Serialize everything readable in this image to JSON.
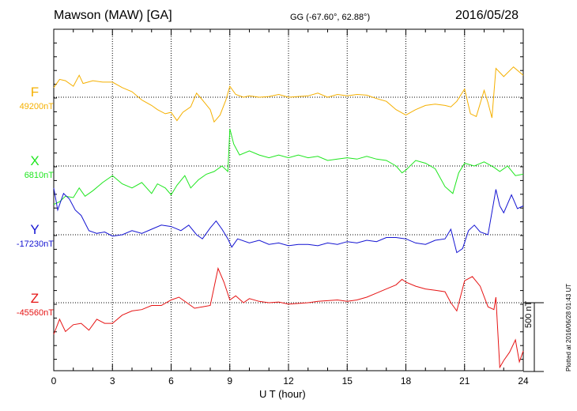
{
  "header": {
    "station": "Mawson (MAW)  [GA]",
    "coords": "GG (-67.60°,  62.88°)",
    "date": "2016/05/28"
  },
  "footer": {
    "plotted_note": "Plotted at 2016/06/28 01:43 UT"
  },
  "colors": {
    "F": "#f5b000",
    "X": "#1ee61e",
    "Y": "#1414d2",
    "Z": "#e61414"
  },
  "chart_data": {
    "type": "line",
    "xlabel": "U T (hour)",
    "xlim": [
      0,
      24
    ],
    "x_ticks": [
      "0",
      "3",
      "6",
      "9",
      "12",
      "15",
      "18",
      "21",
      "24"
    ],
    "scale_bar_label": "500 nT",
    "grid": true,
    "series": [
      {
        "name": "F",
        "baseline_label": "49200nT",
        "points": [
          [
            0,
            70
          ],
          [
            0.3,
            130
          ],
          [
            0.6,
            120
          ],
          [
            1,
            80
          ],
          [
            1.3,
            160
          ],
          [
            1.5,
            100
          ],
          [
            2,
            120
          ],
          [
            2.5,
            110
          ],
          [
            3,
            110
          ],
          [
            3.5,
            70
          ],
          [
            4,
            40
          ],
          [
            4.5,
            -20
          ],
          [
            5,
            -60
          ],
          [
            5.3,
            -90
          ],
          [
            5.7,
            -120
          ],
          [
            6,
            -110
          ],
          [
            6.3,
            -170
          ],
          [
            6.6,
            -110
          ],
          [
            7,
            -70
          ],
          [
            7.3,
            30
          ],
          [
            7.6,
            -20
          ],
          [
            8,
            -90
          ],
          [
            8.2,
            -180
          ],
          [
            8.5,
            -130
          ],
          [
            8.8,
            -20
          ],
          [
            9,
            80
          ],
          [
            9.3,
            20
          ],
          [
            9.7,
            0
          ],
          [
            10,
            10
          ],
          [
            10.5,
            0
          ],
          [
            11,
            5
          ],
          [
            11.5,
            20
          ],
          [
            12,
            0
          ],
          [
            12.5,
            5
          ],
          [
            13,
            10
          ],
          [
            13.5,
            30
          ],
          [
            14,
            0
          ],
          [
            14.5,
            20
          ],
          [
            15,
            10
          ],
          [
            15.5,
            20
          ],
          [
            16,
            15
          ],
          [
            16.5,
            -10
          ],
          [
            17,
            -30
          ],
          [
            17.5,
            -90
          ],
          [
            18,
            -130
          ],
          [
            18.5,
            -90
          ],
          [
            19,
            -60
          ],
          [
            19.5,
            -50
          ],
          [
            20,
            -60
          ],
          [
            20.3,
            -70
          ],
          [
            20.6,
            -30
          ],
          [
            21,
            60
          ],
          [
            21.3,
            -120
          ],
          [
            21.6,
            -140
          ],
          [
            22,
            50
          ],
          [
            22.2,
            -40
          ],
          [
            22.4,
            -150
          ],
          [
            22.6,
            210
          ],
          [
            23,
            150
          ],
          [
            23.5,
            220
          ],
          [
            24,
            160
          ]
        ]
      },
      {
        "name": "X",
        "baseline_label": "6810nT",
        "points": [
          [
            0,
            -280
          ],
          [
            0.3,
            -260
          ],
          [
            0.6,
            -220
          ],
          [
            1,
            -230
          ],
          [
            1.3,
            -160
          ],
          [
            1.6,
            -220
          ],
          [
            2,
            -180
          ],
          [
            2.5,
            -120
          ],
          [
            3,
            -70
          ],
          [
            3.5,
            -130
          ],
          [
            4,
            -160
          ],
          [
            4.5,
            -120
          ],
          [
            5,
            -200
          ],
          [
            5.3,
            -130
          ],
          [
            5.7,
            -160
          ],
          [
            6,
            -210
          ],
          [
            6.3,
            -140
          ],
          [
            6.7,
            -70
          ],
          [
            7,
            -160
          ],
          [
            7.4,
            -100
          ],
          [
            7.8,
            -60
          ],
          [
            8.2,
            -40
          ],
          [
            8.6,
            0
          ],
          [
            8.9,
            -40
          ],
          [
            9,
            270
          ],
          [
            9.2,
            160
          ],
          [
            9.5,
            80
          ],
          [
            10,
            110
          ],
          [
            10.5,
            80
          ],
          [
            11,
            60
          ],
          [
            11.5,
            80
          ],
          [
            12,
            60
          ],
          [
            12.5,
            80
          ],
          [
            13,
            60
          ],
          [
            13.5,
            70
          ],
          [
            14,
            40
          ],
          [
            14.5,
            50
          ],
          [
            15,
            60
          ],
          [
            15.5,
            50
          ],
          [
            16,
            70
          ],
          [
            16.5,
            50
          ],
          [
            17,
            40
          ],
          [
            17.5,
            0
          ],
          [
            17.8,
            -50
          ],
          [
            18,
            -30
          ],
          [
            18.5,
            40
          ],
          [
            19,
            20
          ],
          [
            19.5,
            -20
          ],
          [
            20,
            -150
          ],
          [
            20.4,
            -200
          ],
          [
            20.7,
            -50
          ],
          [
            21,
            20
          ],
          [
            21.5,
            0
          ],
          [
            22,
            30
          ],
          [
            22.5,
            -10
          ],
          [
            22.8,
            -40
          ],
          [
            23.2,
            0
          ],
          [
            23.6,
            -70
          ],
          [
            24,
            -60
          ]
        ]
      },
      {
        "name": "Y",
        "baseline_label": "-17230nT",
        "points": [
          [
            0,
            340
          ],
          [
            0.2,
            180
          ],
          [
            0.5,
            300
          ],
          [
            0.8,
            260
          ],
          [
            1.1,
            180
          ],
          [
            1.4,
            140
          ],
          [
            1.8,
            30
          ],
          [
            2.2,
            10
          ],
          [
            2.6,
            20
          ],
          [
            3,
            -10
          ],
          [
            3.5,
            0
          ],
          [
            4,
            30
          ],
          [
            4.5,
            10
          ],
          [
            5,
            40
          ],
          [
            5.5,
            70
          ],
          [
            6,
            60
          ],
          [
            6.5,
            30
          ],
          [
            6.9,
            70
          ],
          [
            7.3,
            0
          ],
          [
            7.6,
            -30
          ],
          [
            8,
            50
          ],
          [
            8.3,
            100
          ],
          [
            8.6,
            40
          ],
          [
            8.9,
            -30
          ],
          [
            9.1,
            -90
          ],
          [
            9.4,
            -30
          ],
          [
            10,
            -60
          ],
          [
            10.5,
            -40
          ],
          [
            11,
            -70
          ],
          [
            11.5,
            -60
          ],
          [
            12,
            -80
          ],
          [
            12.5,
            -70
          ],
          [
            13,
            -70
          ],
          [
            13.5,
            -80
          ],
          [
            14,
            -60
          ],
          [
            14.5,
            -70
          ],
          [
            15,
            -50
          ],
          [
            15.5,
            -60
          ],
          [
            16,
            -40
          ],
          [
            16.5,
            -50
          ],
          [
            17,
            -20
          ],
          [
            17.5,
            -20
          ],
          [
            18,
            -30
          ],
          [
            18.5,
            -60
          ],
          [
            19,
            -70
          ],
          [
            19.5,
            -40
          ],
          [
            20,
            -30
          ],
          [
            20.3,
            40
          ],
          [
            20.6,
            -130
          ],
          [
            20.9,
            -100
          ],
          [
            21.2,
            30
          ],
          [
            21.5,
            70
          ],
          [
            21.8,
            20
          ],
          [
            22.2,
            0
          ],
          [
            22.6,
            330
          ],
          [
            22.8,
            210
          ],
          [
            23,
            160
          ],
          [
            23.4,
            290
          ],
          [
            23.7,
            190
          ],
          [
            24,
            210
          ]
        ]
      },
      {
        "name": "Z",
        "baseline_label": "-45560nT",
        "points": [
          [
            0,
            -230
          ],
          [
            0.3,
            -120
          ],
          [
            0.6,
            -210
          ],
          [
            1,
            -160
          ],
          [
            1.4,
            -150
          ],
          [
            1.8,
            -200
          ],
          [
            2.2,
            -120
          ],
          [
            2.6,
            -150
          ],
          [
            3,
            -150
          ],
          [
            3.5,
            -90
          ],
          [
            4,
            -60
          ],
          [
            4.5,
            -50
          ],
          [
            5,
            -20
          ],
          [
            5.5,
            -20
          ],
          [
            6,
            20
          ],
          [
            6.4,
            40
          ],
          [
            6.8,
            0
          ],
          [
            7.2,
            -40
          ],
          [
            7.6,
            -30
          ],
          [
            8,
            -20
          ],
          [
            8.4,
            250
          ],
          [
            8.7,
            150
          ],
          [
            9,
            20
          ],
          [
            9.3,
            50
          ],
          [
            9.7,
            0
          ],
          [
            10,
            30
          ],
          [
            10.5,
            10
          ],
          [
            11,
            0
          ],
          [
            11.5,
            5
          ],
          [
            12,
            -10
          ],
          [
            12.5,
            -5
          ],
          [
            13,
            0
          ],
          [
            13.5,
            10
          ],
          [
            14,
            15
          ],
          [
            14.5,
            20
          ],
          [
            15,
            10
          ],
          [
            15.5,
            20
          ],
          [
            16,
            40
          ],
          [
            16.5,
            70
          ],
          [
            17,
            100
          ],
          [
            17.5,
            130
          ],
          [
            17.8,
            170
          ],
          [
            18,
            150
          ],
          [
            18.5,
            120
          ],
          [
            19,
            100
          ],
          [
            19.5,
            90
          ],
          [
            20,
            80
          ],
          [
            20.3,
            0
          ],
          [
            20.6,
            -60
          ],
          [
            21,
            160
          ],
          [
            21.4,
            190
          ],
          [
            21.8,
            120
          ],
          [
            22.2,
            -30
          ],
          [
            22.5,
            -50
          ],
          [
            22.6,
            40
          ],
          [
            22.8,
            -470
          ],
          [
            23,
            -420
          ],
          [
            23.3,
            -360
          ],
          [
            23.6,
            -270
          ],
          [
            23.8,
            -430
          ],
          [
            24,
            -350
          ]
        ]
      }
    ]
  }
}
